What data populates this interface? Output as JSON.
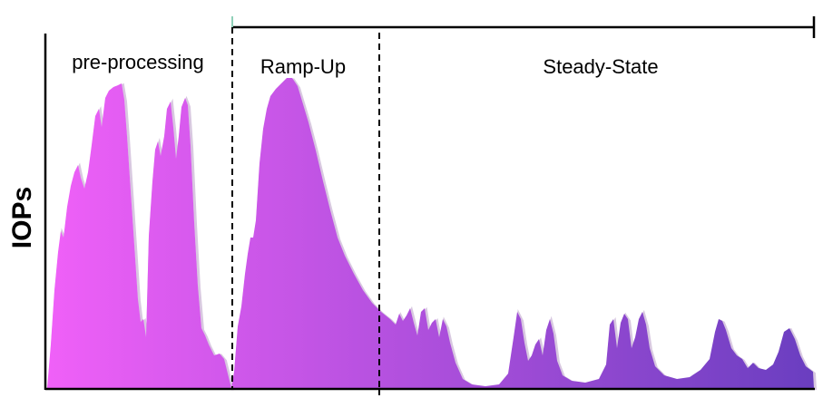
{
  "diagram": {
    "y_axis_label": "IOPs",
    "phases": [
      {
        "id": "pre-processing",
        "label": "pre-processing"
      },
      {
        "id": "ramp-up",
        "label": "Ramp-Up"
      },
      {
        "id": "steady-state",
        "label": "Steady-State"
      }
    ],
    "colors": {
      "fill_start": "#f060f8",
      "fill_end": "#6a3ec0",
      "outline": "#d8c8e0",
      "axis": "#000000",
      "divider": "#000000"
    }
  }
}
